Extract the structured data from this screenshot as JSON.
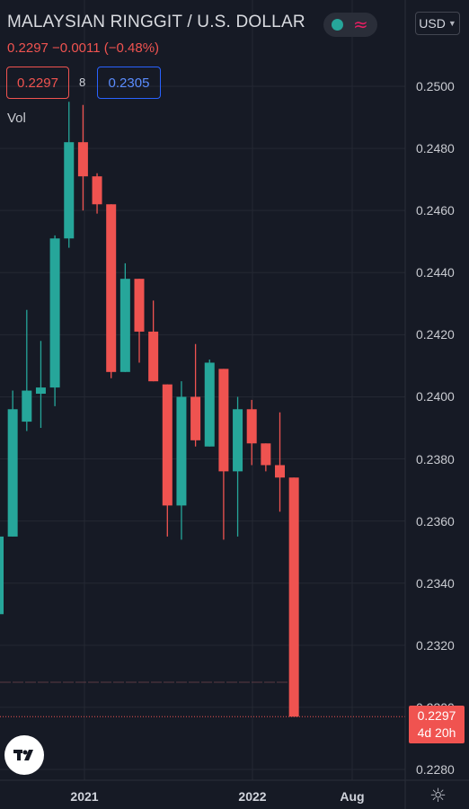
{
  "header": {
    "title": "MALAYSIAN RINGGIT / U.S. DOLLAR",
    "quote": "0.2297  −0.0011 (−0.48%)",
    "currency": "USD"
  },
  "trade": {
    "sell": "0.2297",
    "spread": "8",
    "buy": "0.2305"
  },
  "volume_label": "Vol",
  "last_price": {
    "price": "0.2297",
    "countdown": "4d 20h"
  },
  "icons": {
    "status": "market-status-icon",
    "indicator": "wave-icon",
    "logo": "tradingview-logo",
    "settings": "gear-icon"
  },
  "colors": {
    "background": "#161a25",
    "up": "#26a69a",
    "down": "#ef5350",
    "grid": "#242833"
  },
  "chart_data": {
    "type": "candlestick",
    "y_ticks": [
      "0.2500",
      "0.2480",
      "0.2460",
      "0.2440",
      "0.2420",
      "0.2400",
      "0.2380",
      "0.2360",
      "0.2340",
      "0.2320",
      "0.2300",
      "0.2280"
    ],
    "x_ticks": [
      "2021",
      "2022",
      "Aug"
    ],
    "ylim": [
      0.2273,
      0.252
    ],
    "candles": [
      {
        "o": 0.233,
        "h": 0.2355,
        "l": 0.233,
        "c": 0.2355
      },
      {
        "o": 0.2355,
        "h": 0.2402,
        "l": 0.2355,
        "c": 0.2396
      },
      {
        "o": 0.2392,
        "h": 0.2428,
        "l": 0.2389,
        "c": 0.2402
      },
      {
        "o": 0.2401,
        "h": 0.2418,
        "l": 0.239,
        "c": 0.2403
      },
      {
        "o": 0.2403,
        "h": 0.2452,
        "l": 0.2397,
        "c": 0.2451
      },
      {
        "o": 0.2451,
        "h": 0.2495,
        "l": 0.2448,
        "c": 0.2482
      },
      {
        "o": 0.2482,
        "h": 0.2494,
        "l": 0.246,
        "c": 0.2471
      },
      {
        "o": 0.2471,
        "h": 0.2472,
        "l": 0.2459,
        "c": 0.2462
      },
      {
        "o": 0.2462,
        "h": 0.2462,
        "l": 0.2406,
        "c": 0.2408
      },
      {
        "o": 0.2408,
        "h": 0.2443,
        "l": 0.2408,
        "c": 0.2438
      },
      {
        "o": 0.2438,
        "h": 0.2438,
        "l": 0.2411,
        "c": 0.2421
      },
      {
        "o": 0.2421,
        "h": 0.2431,
        "l": 0.2405,
        "c": 0.2405
      },
      {
        "o": 0.2404,
        "h": 0.2404,
        "l": 0.2355,
        "c": 0.2365
      },
      {
        "o": 0.2365,
        "h": 0.2405,
        "l": 0.2354,
        "c": 0.24
      },
      {
        "o": 0.24,
        "h": 0.2417,
        "l": 0.2384,
        "c": 0.2386
      },
      {
        "o": 0.2384,
        "h": 0.2412,
        "l": 0.2384,
        "c": 0.2411
      },
      {
        "o": 0.2409,
        "h": 0.2409,
        "l": 0.2354,
        "c": 0.2376
      },
      {
        "o": 0.2376,
        "h": 0.24,
        "l": 0.2355,
        "c": 0.2396
      },
      {
        "o": 0.2396,
        "h": 0.2399,
        "l": 0.2378,
        "c": 0.2385
      },
      {
        "o": 0.2385,
        "h": 0.2385,
        "l": 0.2376,
        "c": 0.2378
      },
      {
        "o": 0.2378,
        "h": 0.2395,
        "l": 0.2363,
        "c": 0.2374
      },
      {
        "o": 0.2374,
        "h": 0.2374,
        "l": 0.2297,
        "c": 0.2297
      }
    ]
  }
}
